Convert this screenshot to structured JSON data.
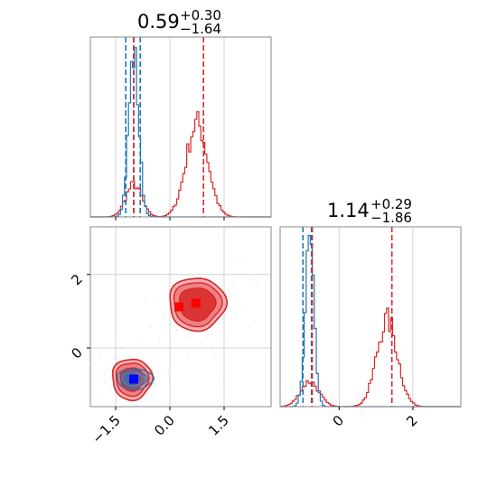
{
  "chart_data": {
    "type": "corner",
    "colors": {
      "blue": "#1f77b4",
      "red": "#d62728",
      "grid": "#c8c8c8",
      "axis": "#888888"
    },
    "params": [
      {
        "title_value": "0.59",
        "title_plus": "+0.30",
        "title_minus": "−1.64"
      },
      {
        "title_value": "1.14",
        "title_plus": "+0.29",
        "title_minus": "−1.86"
      }
    ],
    "x_range": [
      -2.2,
      2.8
    ],
    "y2_range": [
      -1.6,
      3.3
    ],
    "x_ticks": [
      {
        "value": -1.5,
        "label": "−1.5"
      },
      {
        "value": 0.0,
        "label": "0.0"
      },
      {
        "value": 1.5,
        "label": "1.5"
      }
    ],
    "y_ticks": [
      {
        "value": 0,
        "label": "0"
      },
      {
        "value": 2,
        "label": "2"
      }
    ],
    "x2_range": [
      -1.6,
      3.3
    ],
    "x2_ticks": [
      {
        "value": 0,
        "label": "0"
      },
      {
        "value": 2,
        "label": "2"
      }
    ],
    "hist1": {
      "blue": {
        "center": -1.0,
        "sigma": 0.14,
        "peak": 0.9
      },
      "red_a": {
        "center": -1.0,
        "sigma": 0.22,
        "peak": 0.18
      },
      "red_b": {
        "center": 0.75,
        "sigma": 0.3,
        "peak": 0.52
      },
      "lines_blue": [
        -1.22,
        -1.0,
        -0.82
      ],
      "lines_red": [
        -1.0,
        0.93
      ]
    },
    "hist2": {
      "blue": {
        "center": -0.8,
        "sigma": 0.12,
        "peak": 0.9
      },
      "red_a": {
        "center": -0.8,
        "sigma": 0.25,
        "peak": 0.14
      },
      "red_b": {
        "center": 1.3,
        "sigma": 0.28,
        "peak": 0.48
      },
      "lines_blue": [
        -0.98,
        -0.75
      ],
      "lines_red": [
        -0.73,
        1.43
      ]
    },
    "scatter2d": {
      "blue_center": [
        -1.05,
        -0.85
      ],
      "red_center_a": [
        -1.05,
        -0.85
      ],
      "red_center_b": [
        0.75,
        1.2
      ],
      "markers": [
        {
          "x": -1.0,
          "y": -0.85,
          "color": "#0000ff"
        },
        {
          "x": 0.25,
          "y": 1.12,
          "color": "#ff0000"
        },
        {
          "x": 0.72,
          "y": 1.22,
          "color": "#ff0000"
        }
      ]
    }
  }
}
